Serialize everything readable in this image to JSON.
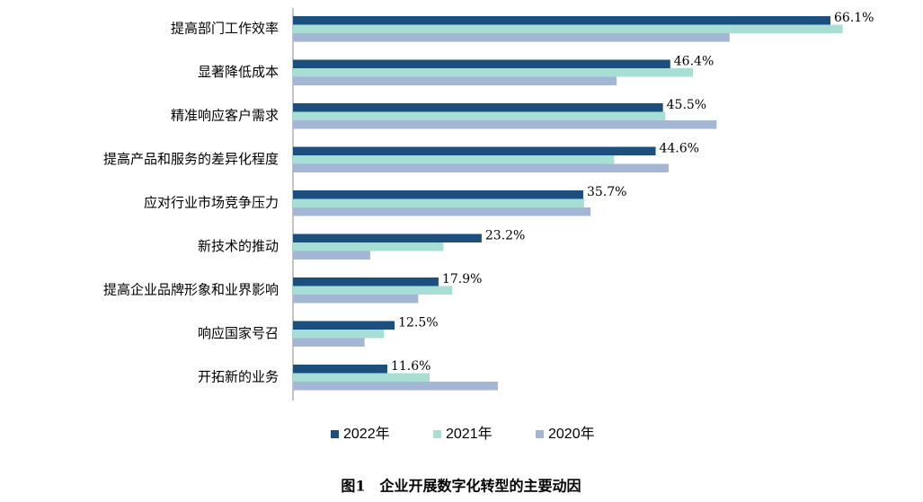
{
  "chart_data": {
    "type": "hbar",
    "title": "图1　企业开展数字化转型的主要动因",
    "categories": [
      "提高部门工作效率",
      "显著降低成本",
      "精准响应客户需求",
      "提高产品和服务的差异化程度",
      "应对行业市场竞争压力",
      "新技术的推动",
      "提高企业品牌形象和业界影响",
      "响应国家号召",
      "开拓新的业务"
    ],
    "series": [
      {
        "name": "2022年",
        "color": "#1b4f7f",
        "values": [
          66.1,
          46.4,
          45.5,
          44.6,
          35.7,
          23.2,
          17.9,
          12.5,
          11.6
        ],
        "value_labels": [
          "66.1%",
          "46.4%",
          "45.5%",
          "44.6%",
          "35.7%",
          "23.2%",
          "17.9%",
          "12.5%",
          "11.6%"
        ]
      },
      {
        "name": "2021年",
        "color": "#a8dfd4",
        "values": [
          67.6,
          49.2,
          45.8,
          39.5,
          35.8,
          18.5,
          19.6,
          11.2,
          16.8
        ]
      },
      {
        "name": "2020年",
        "color": "#a3b6d6",
        "values": [
          53.7,
          39.8,
          52.1,
          46.2,
          36.6,
          9.5,
          15.4,
          8.8,
          25.2
        ]
      }
    ],
    "xlim": [
      0,
      70
    ],
    "legend": "bottom"
  }
}
